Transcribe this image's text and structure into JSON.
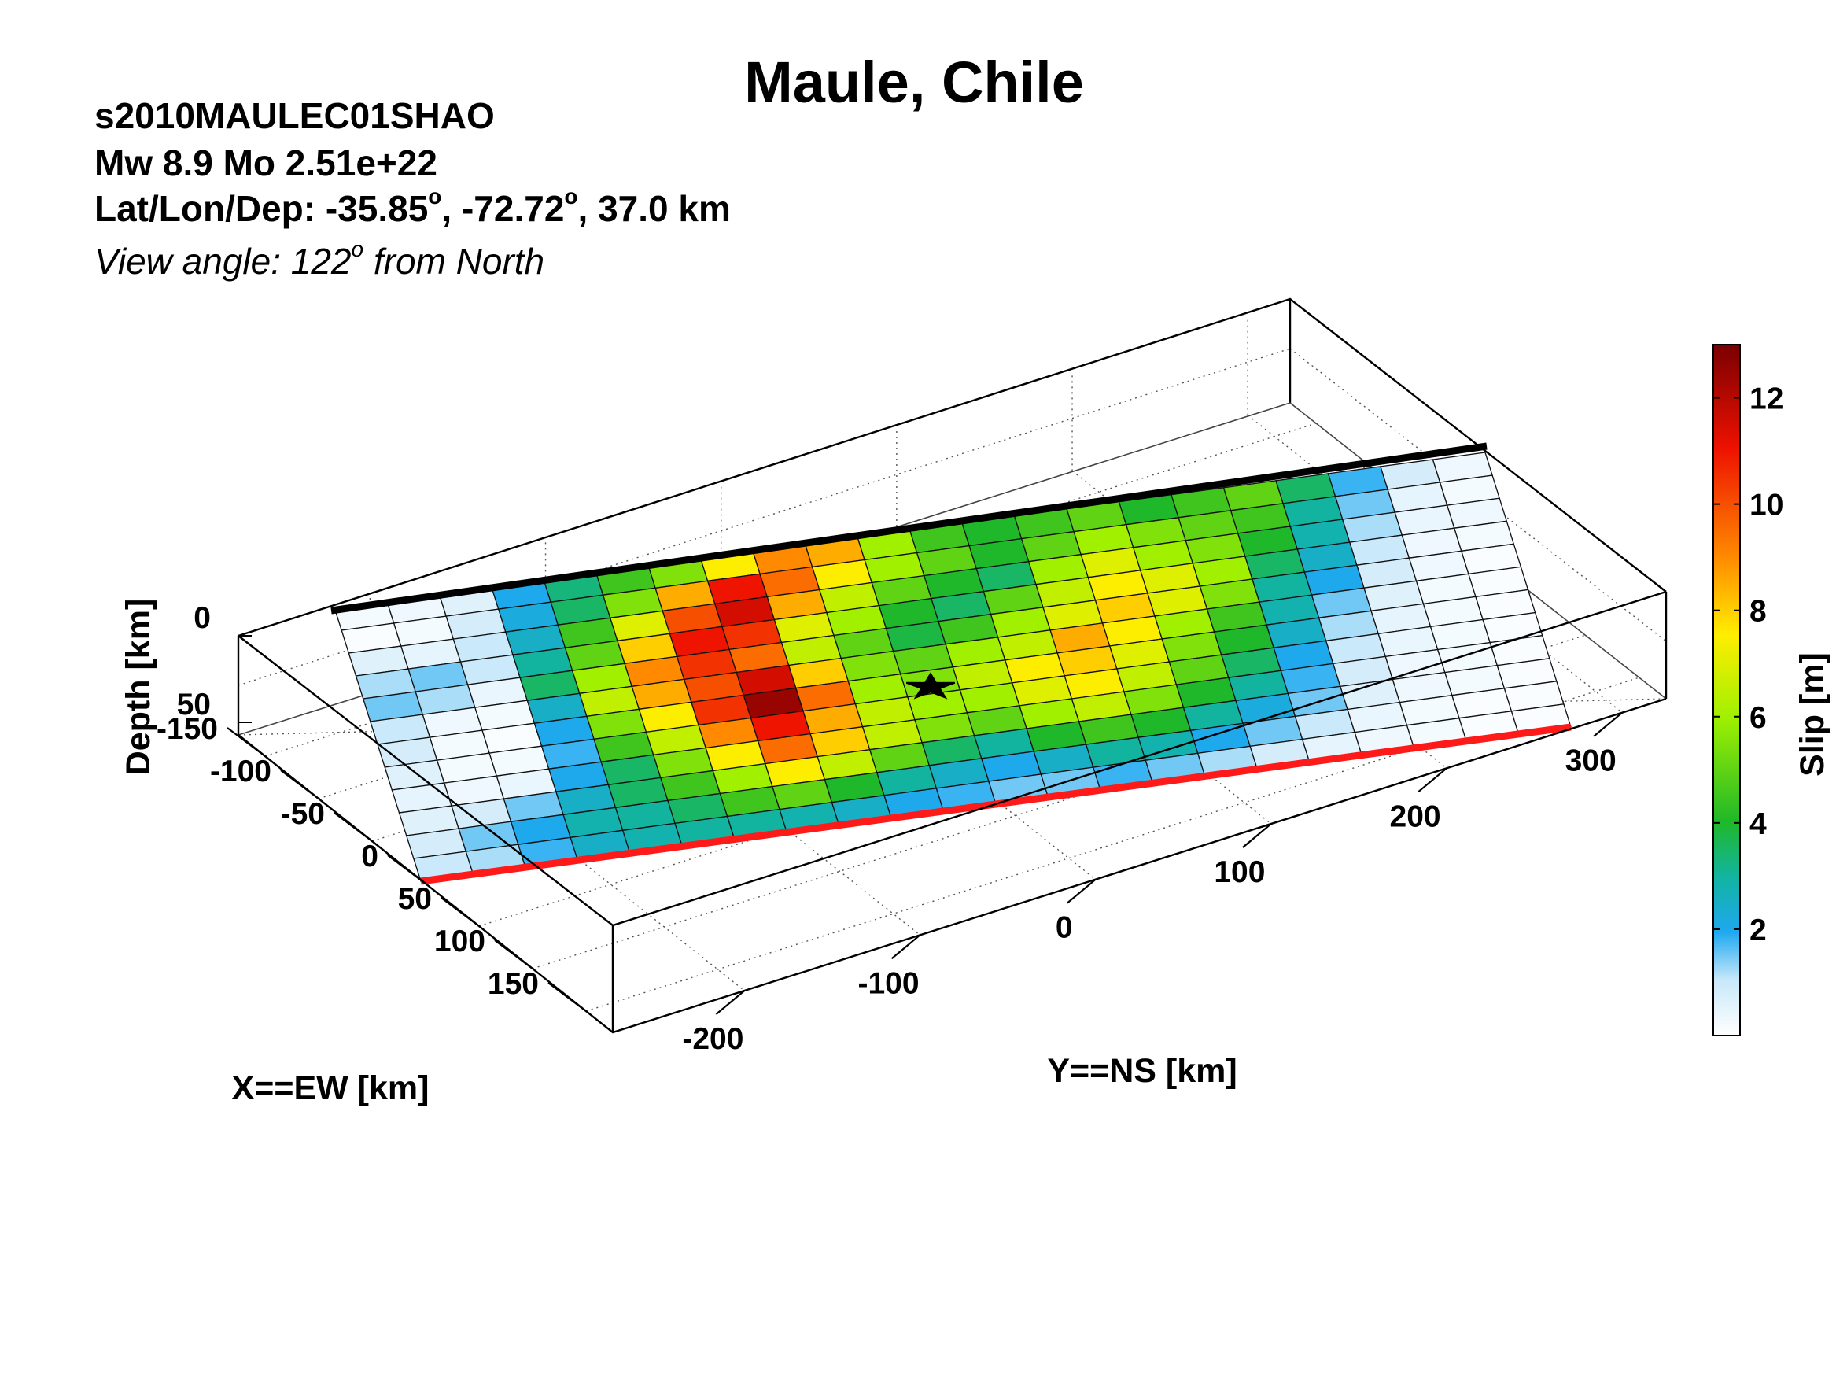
{
  "header": {
    "title": "Maule, Chile",
    "event_id": "s2010MAULEC01SHAO",
    "magnitude_line": "Mw 8.9     Mo 2.51e+22",
    "location_prefix": "Lat/Lon/Dep: -35.85",
    "location_lon": ", -72.72",
    "location_suffix": ", 37.0 km",
    "degree_symbol": "o",
    "view_prefix": "View angle: 122",
    "view_suffix": " from North"
  },
  "chart_data": {
    "type": "heatmap",
    "xlabel": "X==EW [km]",
    "ylabel": "Y==NS [km]",
    "zlabel": "Depth [km]",
    "colorbar_label": "Slip [m]",
    "x_ticks": [
      "-150",
      "-100",
      "-50",
      "0",
      "50",
      "100",
      "150"
    ],
    "y_ticks": [
      "-200",
      "-100",
      "0",
      "100",
      "200",
      "300"
    ],
    "z_ticks": [
      "0",
      "50"
    ],
    "colorbar_ticks": [
      "2",
      "4",
      "6",
      "8",
      "10",
      "12"
    ],
    "xlim": [
      -175,
      175
    ],
    "ylim": [
      -275,
      325
    ],
    "slip_range": [
      0,
      13
    ],
    "hypocenter_marker": "star",
    "slip_grid_m": [
      [
        0.2,
        0.3,
        0.6,
        2.0,
        3.3,
        4.5,
        5.5,
        7.5,
        9.0,
        8.5,
        6.0,
        4.5,
        4.0,
        4.5,
        5.0,
        4.0,
        4.5,
        5.0,
        3.5,
        1.8,
        0.8,
        0.3
      ],
      [
        0.1,
        0.2,
        0.8,
        2.2,
        3.5,
        5.5,
        8.5,
        11.0,
        9.5,
        7.5,
        6.0,
        5.0,
        4.0,
        5.0,
        6.0,
        5.5,
        5.0,
        4.5,
        3.0,
        1.5,
        0.5,
        0.2
      ],
      [
        0.6,
        0.5,
        1.0,
        2.5,
        4.5,
        7.0,
        10.0,
        11.5,
        8.5,
        6.5,
        5.0,
        4.0,
        3.5,
        6.0,
        7.0,
        6.0,
        5.5,
        4.0,
        2.8,
        1.2,
        0.4,
        0.3
      ],
      [
        1.2,
        1.5,
        1.0,
        3.0,
        5.0,
        8.0,
        11.0,
        10.5,
        7.0,
        6.0,
        4.0,
        3.5,
        5.0,
        6.5,
        7.5,
        7.0,
        6.0,
        3.5,
        2.5,
        1.0,
        0.3,
        0.2
      ],
      [
        1.5,
        1.2,
        0.4,
        3.5,
        6.0,
        9.0,
        10.5,
        9.5,
        6.5,
        5.0,
        3.8,
        4.5,
        6.0,
        7.0,
        8.0,
        7.0,
        5.5,
        3.0,
        2.0,
        0.8,
        0.3,
        0.1
      ],
      [
        1.0,
        0.3,
        0.2,
        2.5,
        6.5,
        8.5,
        10.0,
        11.5,
        8.0,
        5.5,
        5.0,
        6.0,
        6.5,
        8.5,
        7.5,
        6.0,
        4.5,
        2.8,
        1.5,
        0.6,
        0.2,
        0.1
      ],
      [
        0.8,
        0.2,
        0.1,
        2.0,
        5.5,
        7.5,
        10.5,
        12.5,
        9.5,
        6.0,
        5.5,
        6.5,
        7.5,
        8.0,
        7.0,
        5.5,
        4.0,
        2.5,
        1.2,
        0.5,
        0.2,
        0.1
      ],
      [
        0.6,
        0.2,
        0.2,
        1.8,
        4.5,
        6.5,
        9.0,
        11.0,
        8.5,
        6.5,
        6.0,
        6.0,
        7.0,
        7.5,
        6.5,
        5.0,
        3.5,
        2.0,
        1.0,
        0.4,
        0.2,
        0.1
      ],
      [
        0.5,
        0.3,
        0.4,
        2.0,
        3.5,
        5.5,
        7.5,
        9.5,
        8.0,
        6.5,
        5.5,
        5.0,
        6.0,
        6.5,
        5.5,
        4.0,
        3.0,
        1.8,
        0.8,
        0.3,
        0.2,
        0.1
      ],
      [
        0.6,
        0.8,
        1.5,
        2.5,
        3.5,
        4.5,
        6.0,
        7.5,
        6.5,
        5.0,
        3.5,
        3.0,
        4.0,
        4.5,
        4.0,
        3.0,
        2.2,
        1.5,
        0.6,
        0.3,
        0.2,
        0.1
      ],
      [
        0.8,
        1.5,
        2.0,
        2.8,
        3.0,
        3.5,
        4.5,
        5.0,
        4.0,
        3.0,
        2.5,
        2.0,
        2.5,
        3.0,
        2.8,
        2.0,
        1.5,
        1.0,
        0.4,
        0.2,
        0.1,
        0.1
      ],
      [
        1.0,
        1.2,
        1.8,
        2.5,
        2.8,
        3.0,
        3.0,
        2.8,
        2.5,
        2.0,
        1.8,
        1.5,
        1.5,
        1.8,
        1.5,
        1.2,
        0.8,
        0.5,
        0.3,
        0.2,
        0.1,
        0.1
      ]
    ]
  }
}
